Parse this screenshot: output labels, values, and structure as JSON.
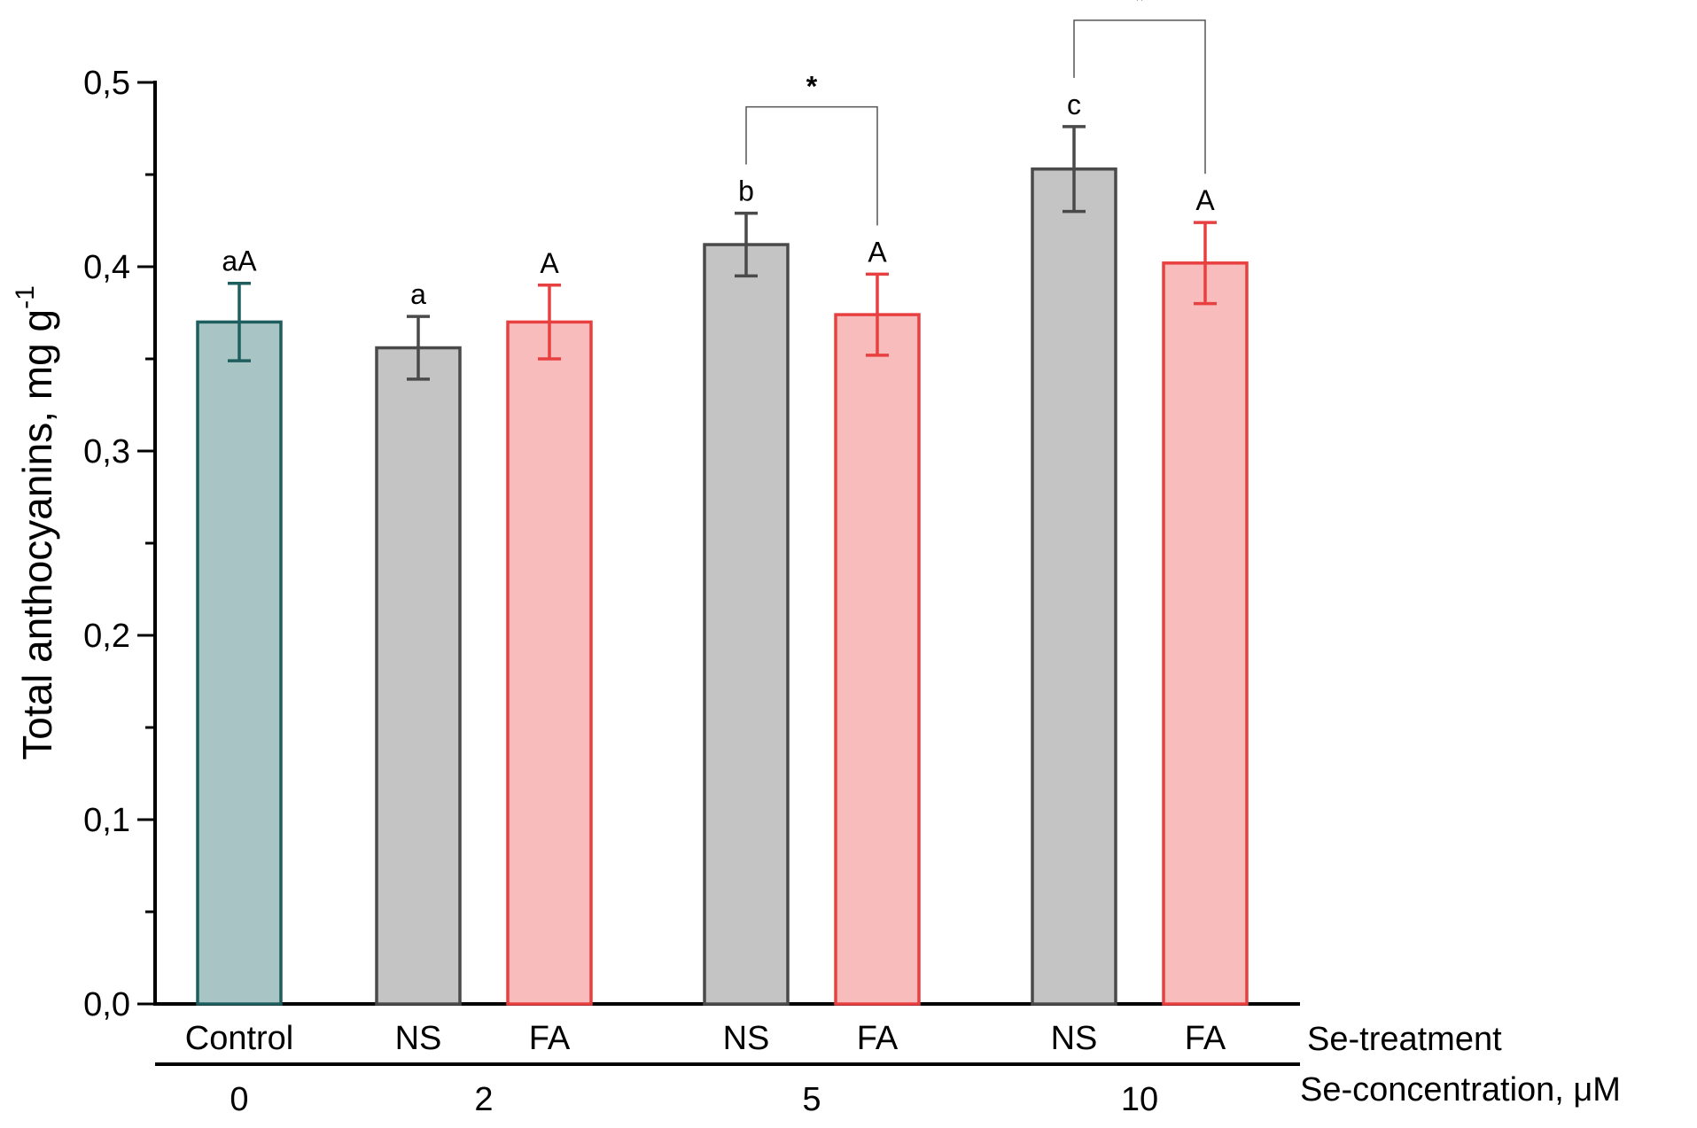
{
  "chart_data": {
    "type": "bar",
    "ylabel": "Total anthocyanins, mg g",
    "ylabel_sup": "-1",
    "ylim": [
      0,
      0.5
    ],
    "y_ticks": [
      "0,0",
      "0,1",
      "0,2",
      "0,3",
      "0,4",
      "0,5"
    ],
    "bars": [
      {
        "treatment": "Control",
        "value": 0.37,
        "error": 0.021,
        "label": "aA",
        "fill": "#a8c4c4",
        "stroke": "#1f5e5e"
      },
      {
        "treatment": "NS",
        "value": 0.356,
        "error": 0.017,
        "label": "a",
        "fill": "#c4c4c4",
        "stroke": "#4a4a4a"
      },
      {
        "treatment": "FA",
        "value": 0.37,
        "error": 0.02,
        "label": "A",
        "fill": "#f8bcbc",
        "stroke": "#e84040"
      },
      {
        "treatment": "NS",
        "value": 0.412,
        "error": 0.017,
        "label": "b",
        "fill": "#c4c4c4",
        "stroke": "#4a4a4a"
      },
      {
        "treatment": "FA",
        "value": 0.374,
        "error": 0.022,
        "label": "A",
        "fill": "#f8bcbc",
        "stroke": "#e84040"
      },
      {
        "treatment": "NS",
        "value": 0.453,
        "error": 0.023,
        "label": "c",
        "fill": "#c4c4c4",
        "stroke": "#4a4a4a"
      },
      {
        "treatment": "FA",
        "value": 0.402,
        "error": 0.022,
        "label": "A",
        "fill": "#f8bcbc",
        "stroke": "#e84040"
      }
    ],
    "concentrations": [
      "0",
      "2",
      "5",
      "10"
    ],
    "treatment_row_title": "Se-treatment",
    "concentration_row_title": "Se-concentration, μM",
    "significance": [
      {
        "from_bar": 3,
        "to_bar": 4,
        "symbol": "*"
      },
      {
        "from_bar": 5,
        "to_bar": 6,
        "symbol": "*"
      }
    ]
  }
}
